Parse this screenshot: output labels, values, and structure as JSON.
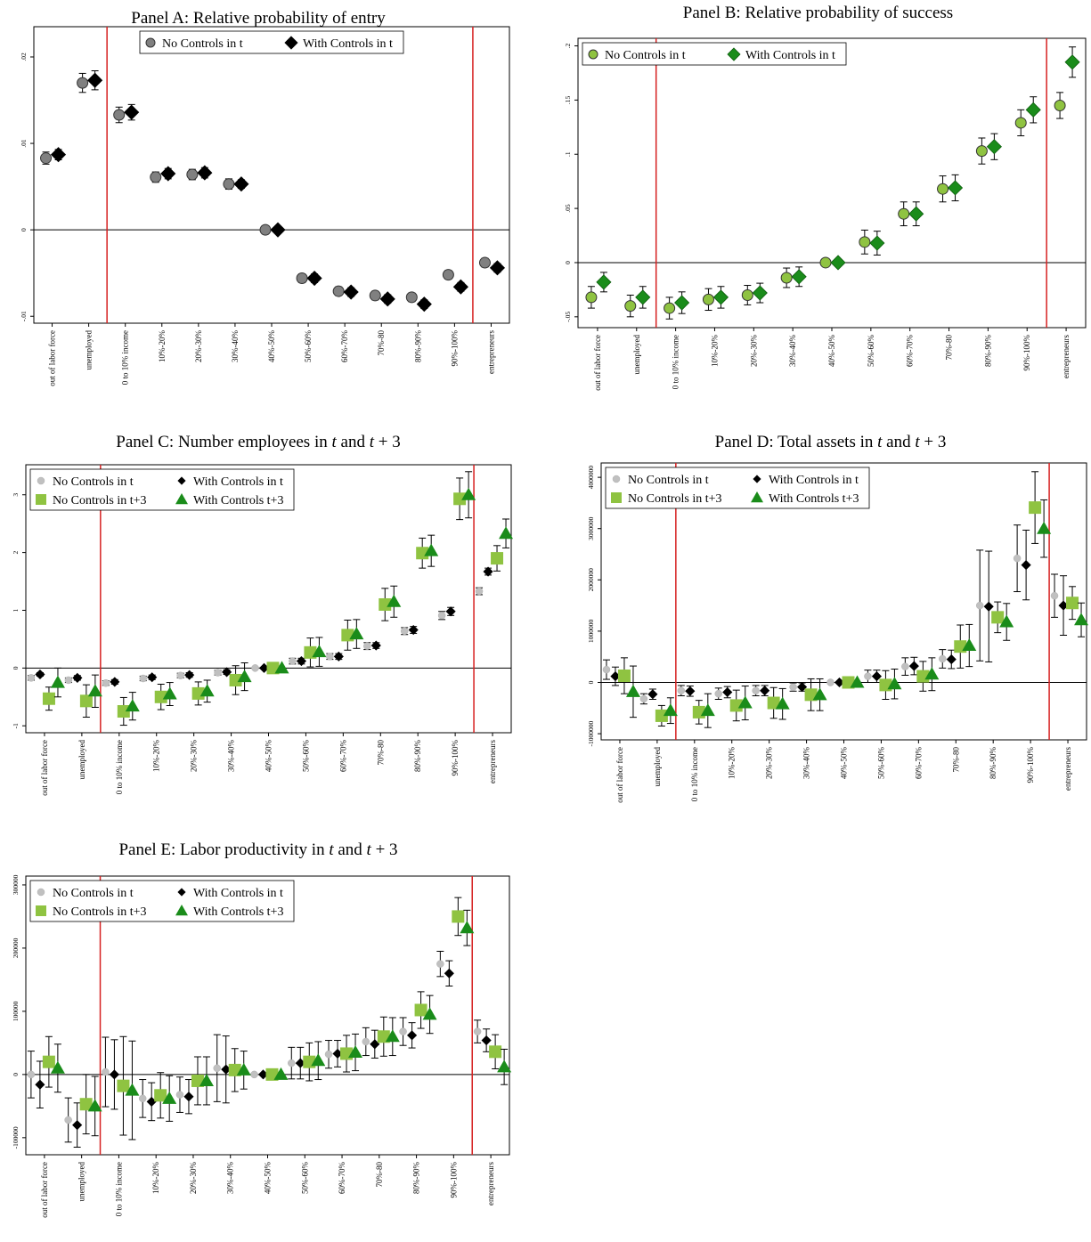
{
  "chart_data": [
    {
      "id": "A",
      "type": "scatter",
      "title": "Panel A: Relative probability of entry",
      "categories": [
        "out of labor force",
        "unemployed",
        "0 to 10% income",
        "10%-20%",
        "20%-30%",
        "30%-40%",
        "40%-50%",
        "50%-60%",
        "60%-70%",
        "70%-80",
        "80%-90%",
        "90%-100%",
        "entrepreneurs"
      ],
      "ylim": [
        -0.0108,
        0.0235
      ],
      "yticks": [
        -0.01,
        0,
        0.01,
        0.02
      ],
      "ytick_labels": [
        "-.01",
        "0",
        ".01",
        ".02"
      ],
      "vlines_after": [
        1,
        11
      ],
      "legend": {
        "position": "top",
        "cols": 2
      },
      "series": [
        {
          "name": "No Controls in t",
          "marker": "circle",
          "color": "#808080",
          "size": 6,
          "values": [
            0.0083,
            0.017,
            0.0133,
            0.0061,
            0.0064,
            0.0053,
            0.0,
            -0.0056,
            -0.0071,
            -0.0076,
            -0.0078,
            -0.0052,
            -0.0038
          ],
          "err": [
            0.0007,
            0.0011,
            0.0009,
            0.0006,
            0.0006,
            0.0006,
            0,
            0.0005,
            0.0005,
            0.0005,
            0.0005,
            0.0005,
            0.0005
          ]
        },
        {
          "name": "With Controls in t",
          "marker": "diamond",
          "color": "#000000",
          "size": 8,
          "values": [
            0.0087,
            0.0173,
            0.0136,
            0.0065,
            0.0066,
            0.0053,
            0.0,
            -0.0056,
            -0.0072,
            -0.008,
            -0.0086,
            -0.0066,
            -0.0044
          ],
          "err": [
            0.0006,
            0.0011,
            0.0009,
            0.0006,
            0.0006,
            0.0005,
            0,
            0.0005,
            0.0005,
            0.0005,
            0.0005,
            0.0005,
            0.0005
          ]
        }
      ]
    },
    {
      "id": "B",
      "type": "scatter",
      "title": "Panel B: Relative probability of success",
      "categories": [
        "out of labor force",
        "unemployed",
        "0 to 10% income",
        "10%-20%",
        "20%-30%",
        "30%-40%",
        "40%-50%",
        "50%-60%",
        "60%-70%",
        "70%-80",
        "80%-90%",
        "90%-100%",
        "entrepreneurs"
      ],
      "ylim": [
        -0.06,
        0.207
      ],
      "yticks": [
        -0.05,
        0,
        0.05,
        0.1,
        0.15,
        0.2
      ],
      "ytick_labels": [
        "-.05",
        "0",
        ".05",
        ".1",
        ".15",
        ".2"
      ],
      "vlines_after": [
        1,
        11
      ],
      "legend": {
        "position": "top-left",
        "cols": 2
      },
      "series": [
        {
          "name": "No Controls in t",
          "marker": "circle",
          "color": "#8fc341",
          "size": 6,
          "values": [
            -0.032,
            -0.04,
            -0.042,
            -0.034,
            -0.03,
            -0.014,
            0.0,
            0.019,
            0.045,
            0.068,
            0.103,
            0.129,
            0.145
          ],
          "err": [
            0.01,
            0.01,
            0.01,
            0.01,
            0.009,
            0.009,
            0,
            0.011,
            0.011,
            0.012,
            0.012,
            0.012,
            0.012
          ]
        },
        {
          "name": "With Controls in t",
          "marker": "diamond",
          "color": "#1a8c1a",
          "size": 8,
          "values": [
            -0.018,
            -0.032,
            -0.037,
            -0.032,
            -0.028,
            -0.013,
            0.0,
            0.018,
            0.045,
            0.069,
            0.107,
            0.141,
            0.185
          ],
          "err": [
            0.009,
            0.01,
            0.01,
            0.01,
            0.009,
            0.009,
            0,
            0.011,
            0.011,
            0.012,
            0.012,
            0.012,
            0.014
          ]
        }
      ]
    },
    {
      "id": "C",
      "type": "scatter",
      "title": "Panel C: Number employees in ",
      "title_math": {
        "t": "t",
        "and": " and ",
        "t3": "t",
        "plus": " + 3"
      },
      "categories": [
        "out of labor force",
        "unemployed",
        "0 to 10% income",
        "10%-20%",
        "20%-30%",
        "30%-40%",
        "40%-50%",
        "50%-60%",
        "60%-70%",
        "70%-80",
        "80%-90%",
        "90%-100%",
        "entrepreneurs"
      ],
      "ylim": [
        -1.12,
        3.52
      ],
      "yticks": [
        -1,
        0,
        1,
        2,
        3
      ],
      "ytick_labels": [
        "-1",
        "0",
        "1",
        "2",
        "3"
      ],
      "vlines_after": [
        1,
        11
      ],
      "legend": {
        "position": "top-left",
        "cols": 2
      },
      "series": [
        {
          "name": "No Controls in t",
          "marker": "circle",
          "color": "#c0c0c0",
          "size": 4,
          "values": [
            -0.17,
            -0.21,
            -0.26,
            -0.18,
            -0.13,
            -0.08,
            0.0,
            0.12,
            0.2,
            0.38,
            0.64,
            0.91,
            1.33
          ],
          "err": [
            0.04,
            0.04,
            0.04,
            0.04,
            0.04,
            0.04,
            0,
            0.05,
            0.05,
            0.06,
            0.06,
            0.07,
            0.06
          ]
        },
        {
          "name": "With Controls in t",
          "marker": "diamond",
          "color": "#000000",
          "size": 5,
          "values": [
            -0.11,
            -0.17,
            -0.24,
            -0.16,
            -0.12,
            -0.07,
            0.0,
            0.12,
            0.2,
            0.39,
            0.66,
            0.98,
            1.67
          ],
          "err": [
            0.03,
            0.04,
            0.04,
            0.04,
            0.04,
            0.04,
            0,
            0.05,
            0.05,
            0.05,
            0.06,
            0.07,
            0.06
          ]
        },
        {
          "name": "No Controls in t+3",
          "marker": "square",
          "color": "#8fc341",
          "size": 7,
          "values": [
            -0.53,
            -0.57,
            -0.75,
            -0.5,
            -0.44,
            -0.21,
            0.0,
            0.27,
            0.57,
            1.1,
            1.99,
            2.93,
            1.9
          ],
          "err": [
            0.2,
            0.28,
            0.24,
            0.22,
            0.2,
            0.25,
            0,
            0.25,
            0.26,
            0.28,
            0.26,
            0.36,
            0.22
          ]
        },
        {
          "name": "With Controls t+3",
          "marker": "triangle",
          "color": "#1a8c1a",
          "size": 8,
          "values": [
            -0.25,
            -0.4,
            -0.66,
            -0.45,
            -0.4,
            -0.15,
            0.0,
            0.28,
            0.59,
            1.15,
            2.03,
            3.0,
            2.33
          ],
          "err": [
            0.25,
            0.28,
            0.24,
            0.2,
            0.19,
            0.24,
            0,
            0.25,
            0.25,
            0.27,
            0.27,
            0.4,
            0.25
          ]
        }
      ]
    },
    {
      "id": "D",
      "type": "scatter",
      "title": "Panel D: Total assets in ",
      "title_math": {
        "t": "t",
        "and": " and ",
        "t3": "t",
        "plus": " + 3"
      },
      "categories": [
        "out of labor force",
        "unemployed",
        "0 to 10% income",
        "10%-20%",
        "20%-30%",
        "30%-40%",
        "40%-50%",
        "50%-60%",
        "60%-70%",
        "70%-80",
        "80%-90%",
        "90%-100%",
        "entrepreneurs"
      ],
      "ylim": [
        -1120000,
        4280000
      ],
      "yticks": [
        -1000000,
        0,
        1000000,
        2000000,
        3000000,
        4000000
      ],
      "ytick_labels": [
        "-1000000",
        "0",
        "1000000",
        "2000000",
        "3000000",
        "4000000"
      ],
      "vlines_after": [
        1,
        11
      ],
      "legend": {
        "position": "top-left",
        "cols": 2
      },
      "series": [
        {
          "name": "No Controls in t",
          "marker": "circle",
          "color": "#c0c0c0",
          "size": 4,
          "values": [
            250000,
            -320000,
            -160000,
            -220000,
            -160000,
            -90000,
            0,
            120000,
            310000,
            460000,
            1500000,
            2420000,
            1690000
          ],
          "err": [
            190000,
            100000,
            100000,
            110000,
            100000,
            80000,
            0,
            120000,
            170000,
            180000,
            1080000,
            650000,
            420000
          ]
        },
        {
          "name": "With Controls in t",
          "marker": "diamond",
          "color": "#000000",
          "size": 5,
          "values": [
            120000,
            -230000,
            -170000,
            -190000,
            -160000,
            -90000,
            0,
            120000,
            320000,
            450000,
            1480000,
            2290000,
            1500000
          ],
          "err": [
            180000,
            100000,
            100000,
            110000,
            100000,
            80000,
            0,
            120000,
            170000,
            180000,
            1080000,
            680000,
            580000
          ]
        },
        {
          "name": "No Controls in t+3",
          "marker": "square",
          "color": "#8fc341",
          "size": 7,
          "values": [
            130000,
            -650000,
            -580000,
            -450000,
            -400000,
            -240000,
            0,
            -50000,
            120000,
            700000,
            1270000,
            3410000,
            1550000
          ],
          "err": [
            350000,
            200000,
            230000,
            300000,
            300000,
            310000,
            0,
            280000,
            290000,
            420000,
            300000,
            700000,
            320000
          ]
        },
        {
          "name": "With Controls t+3",
          "marker": "triangle",
          "color": "#1a8c1a",
          "size": 8,
          "values": [
            -180000,
            -550000,
            -550000,
            -400000,
            -420000,
            -240000,
            0,
            -30000,
            160000,
            720000,
            1180000,
            3000000,
            1220000
          ],
          "err": [
            500000,
            250000,
            330000,
            330000,
            300000,
            310000,
            0,
            290000,
            320000,
            410000,
            360000,
            560000,
            330000
          ]
        }
      ]
    },
    {
      "id": "E",
      "type": "scatter",
      "title": "Panel E: Labor productivity in ",
      "title_math": {
        "t": "t",
        "and": " and ",
        "t3": "t",
        "plus": " + 3"
      },
      "categories": [
        "out of labor force",
        "unemployed",
        "0 to 10% income",
        "10%-20%",
        "20%-30%",
        "30%-40%",
        "40%-50%",
        "50%-60%",
        "60%-70%",
        "70%-80",
        "80%-90%",
        "90%-100%",
        "entrepreneurs"
      ],
      "ylim": [
        -127000,
        314000
      ],
      "yticks": [
        -100000,
        0,
        100000,
        200000,
        300000
      ],
      "ytick_labels": [
        "-100000",
        "0",
        "100000",
        "200000",
        "300000"
      ],
      "vlines_after": [
        1,
        11
      ],
      "legend": {
        "position": "top-left",
        "cols": 2
      },
      "series": [
        {
          "name": "No Controls in t",
          "marker": "circle",
          "color": "#c0c0c0",
          "size": 4,
          "values": [
            0,
            -72000,
            4000,
            -38000,
            -32000,
            10000,
            0,
            18000,
            32000,
            52000,
            68000,
            175000,
            68000
          ],
          "err": [
            37000,
            35000,
            55000,
            30000,
            28000,
            53000,
            0,
            25000,
            22000,
            22000,
            22000,
            20000,
            18000
          ]
        },
        {
          "name": "With Controls in t",
          "marker": "diamond",
          "color": "#000000",
          "size": 5,
          "values": [
            -16000,
            -80000,
            0,
            -43000,
            -35000,
            8000,
            0,
            18000,
            33000,
            48000,
            62000,
            160000,
            54000
          ],
          "err": [
            37000,
            35000,
            55000,
            30000,
            27000,
            53000,
            0,
            25000,
            21000,
            22000,
            20000,
            20000,
            18000
          ]
        },
        {
          "name": "No Controls in t+3",
          "marker": "square",
          "color": "#8fc341",
          "size": 7,
          "values": [
            20000,
            -47000,
            -18000,
            -33000,
            -10000,
            7000,
            0,
            20000,
            33000,
            60000,
            102000,
            250000,
            36000
          ],
          "err": [
            40000,
            47000,
            78000,
            36000,
            38000,
            34000,
            0,
            30000,
            29000,
            31000,
            29000,
            30000,
            27000
          ]
        },
        {
          "name": "With Controls t+3",
          "marker": "triangle",
          "color": "#1a8c1a",
          "size": 8,
          "values": [
            10000,
            -50000,
            -25000,
            -38000,
            -10000,
            7000,
            0,
            22000,
            35000,
            60000,
            95000,
            232000,
            12000
          ],
          "err": [
            38000,
            47000,
            78000,
            36000,
            38000,
            30000,
            0,
            30000,
            29000,
            30000,
            30000,
            28000,
            28000
          ]
        }
      ]
    }
  ]
}
